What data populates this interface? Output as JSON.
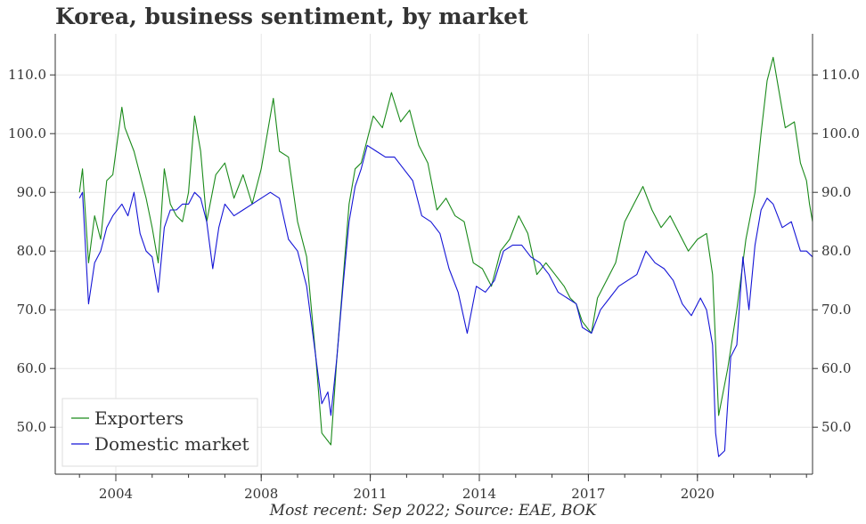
{
  "title": "Korea, business sentiment, by market",
  "footnote": "Most recent: Sep 2022; Source: EAE, BOK",
  "chart_data": {
    "type": "line",
    "title": "Korea, business sentiment, by market",
    "xlabel": "",
    "ylabel": "",
    "x_ticks": [
      "2004",
      "2008",
      "2011",
      "2014",
      "2017",
      "2020"
    ],
    "y_ticks": [
      "50.0",
      "60.0",
      "70.0",
      "80.0",
      "90.0",
      "100.0",
      "110.0"
    ],
    "xlim": [
      "2002-05",
      "2023-03"
    ],
    "ylim": [
      42,
      117
    ],
    "grid": true,
    "right_axis": true,
    "legend_position": "bottom-left",
    "series": [
      {
        "name": "Exporters",
        "color": "#1a8a1a",
        "points": [
          [
            "2003-01",
            90
          ],
          [
            "2003-02",
            94
          ],
          [
            "2003-04",
            78
          ],
          [
            "2003-06",
            86
          ],
          [
            "2003-08",
            82
          ],
          [
            "2003-10",
            92
          ],
          [
            "2003-12",
            93
          ],
          [
            "2004-03",
            104.5
          ],
          [
            "2004-04",
            101
          ],
          [
            "2004-07",
            97
          ],
          [
            "2004-09",
            93
          ],
          [
            "2004-11",
            89
          ],
          [
            "2005-01",
            84
          ],
          [
            "2005-03",
            78
          ],
          [
            "2005-05",
            94
          ],
          [
            "2005-07",
            88
          ],
          [
            "2005-09",
            86
          ],
          [
            "2005-11",
            85
          ],
          [
            "2006-01",
            90
          ],
          [
            "2006-03",
            103
          ],
          [
            "2006-05",
            97
          ],
          [
            "2006-07",
            85
          ],
          [
            "2006-10",
            93
          ],
          [
            "2007-01",
            95
          ],
          [
            "2007-04",
            89
          ],
          [
            "2007-07",
            93
          ],
          [
            "2007-10",
            88
          ],
          [
            "2008-01",
            94
          ],
          [
            "2008-05",
            106
          ],
          [
            "2008-07",
            97
          ],
          [
            "2008-10",
            96
          ],
          [
            "2009-01",
            85
          ],
          [
            "2009-04",
            79
          ],
          [
            "2009-07",
            62
          ],
          [
            "2009-09",
            49
          ],
          [
            "2009-12",
            47
          ],
          [
            "2010-02",
            62
          ],
          [
            "2010-04",
            75
          ],
          [
            "2010-06",
            88
          ],
          [
            "2010-08",
            94
          ],
          [
            "2010-10",
            95
          ],
          [
            "2010-12",
            99
          ],
          [
            "2011-02",
            103
          ],
          [
            "2011-05",
            101
          ],
          [
            "2011-08",
            107
          ],
          [
            "2011-11",
            102
          ],
          [
            "2012-02",
            104
          ],
          [
            "2012-05",
            98
          ],
          [
            "2012-08",
            95
          ],
          [
            "2012-11",
            87
          ],
          [
            "2013-02",
            89
          ],
          [
            "2013-05",
            86
          ],
          [
            "2013-08",
            85
          ],
          [
            "2013-11",
            78
          ],
          [
            "2014-02",
            77
          ],
          [
            "2014-05",
            74
          ],
          [
            "2014-08",
            80
          ],
          [
            "2014-11",
            82
          ],
          [
            "2015-02",
            86
          ],
          [
            "2015-05",
            83
          ],
          [
            "2015-08",
            76
          ],
          [
            "2015-11",
            78
          ],
          [
            "2016-02",
            76
          ],
          [
            "2016-05",
            74
          ],
          [
            "2016-07",
            72
          ],
          [
            "2016-09",
            71
          ],
          [
            "2016-11",
            68
          ],
          [
            "2017-02",
            66
          ],
          [
            "2017-04",
            72
          ],
          [
            "2017-07",
            75
          ],
          [
            "2017-10",
            78
          ],
          [
            "2018-01",
            85
          ],
          [
            "2018-04",
            88
          ],
          [
            "2018-07",
            91
          ],
          [
            "2018-10",
            87
          ],
          [
            "2019-01",
            84
          ],
          [
            "2019-04",
            86
          ],
          [
            "2019-07",
            83
          ],
          [
            "2019-10",
            80
          ],
          [
            "2020-01",
            82
          ],
          [
            "2020-04",
            83
          ],
          [
            "2020-06",
            76
          ],
          [
            "2020-08",
            52
          ],
          [
            "2020-11",
            60
          ],
          [
            "2021-02",
            70
          ],
          [
            "2021-05",
            82
          ],
          [
            "2021-08",
            90
          ],
          [
            "2021-10",
            100
          ],
          [
            "2021-12",
            109
          ],
          [
            "2022-02",
            113
          ],
          [
            "2022-04",
            107
          ],
          [
            "2022-06",
            101
          ],
          [
            "2022-09",
            102
          ],
          [
            "2022-11",
            95
          ],
          [
            "2023-01",
            92
          ],
          [
            "2023-02",
            88
          ],
          [
            "2023-03",
            85
          ]
        ]
      },
      {
        "name": "Domestic market",
        "color": "#1515d6",
        "points": [
          [
            "2003-01",
            89
          ],
          [
            "2003-02",
            90
          ],
          [
            "2003-04",
            71
          ],
          [
            "2003-06",
            78
          ],
          [
            "2003-08",
            80
          ],
          [
            "2003-10",
            84
          ],
          [
            "2003-12",
            86
          ],
          [
            "2004-03",
            88
          ],
          [
            "2004-05",
            86
          ],
          [
            "2004-07",
            90
          ],
          [
            "2004-09",
            83
          ],
          [
            "2004-11",
            80
          ],
          [
            "2005-01",
            79
          ],
          [
            "2005-03",
            73
          ],
          [
            "2005-05",
            84
          ],
          [
            "2005-07",
            87
          ],
          [
            "2005-09",
            87
          ],
          [
            "2005-11",
            88
          ],
          [
            "2006-01",
            88
          ],
          [
            "2006-03",
            90
          ],
          [
            "2006-05",
            89
          ],
          [
            "2006-07",
            85
          ],
          [
            "2006-09",
            77
          ],
          [
            "2006-11",
            84
          ],
          [
            "2007-01",
            88
          ],
          [
            "2007-04",
            86
          ],
          [
            "2007-07",
            87
          ],
          [
            "2007-10",
            88
          ],
          [
            "2008-01",
            89
          ],
          [
            "2008-04",
            90
          ],
          [
            "2008-07",
            89
          ],
          [
            "2008-10",
            82
          ],
          [
            "2009-01",
            80
          ],
          [
            "2009-04",
            74
          ],
          [
            "2009-07",
            62
          ],
          [
            "2009-09",
            54
          ],
          [
            "2009-11",
            56
          ],
          [
            "2009-12",
            52
          ],
          [
            "2010-02",
            62
          ],
          [
            "2010-04",
            74
          ],
          [
            "2010-06",
            85
          ],
          [
            "2010-08",
            91
          ],
          [
            "2010-10",
            94
          ],
          [
            "2010-12",
            98
          ],
          [
            "2011-03",
            97
          ],
          [
            "2011-06",
            96
          ],
          [
            "2011-09",
            96
          ],
          [
            "2011-12",
            94
          ],
          [
            "2012-03",
            92
          ],
          [
            "2012-06",
            86
          ],
          [
            "2012-09",
            85
          ],
          [
            "2012-12",
            83
          ],
          [
            "2013-03",
            77
          ],
          [
            "2013-06",
            73
          ],
          [
            "2013-09",
            66
          ],
          [
            "2013-12",
            74
          ],
          [
            "2014-03",
            73
          ],
          [
            "2014-06",
            75
          ],
          [
            "2014-09",
            80
          ],
          [
            "2014-12",
            81
          ],
          [
            "2015-03",
            81
          ],
          [
            "2015-06",
            79
          ],
          [
            "2015-09",
            78
          ],
          [
            "2015-12",
            76
          ],
          [
            "2016-03",
            73
          ],
          [
            "2016-06",
            72
          ],
          [
            "2016-09",
            71
          ],
          [
            "2016-11",
            67
          ],
          [
            "2017-02",
            66
          ],
          [
            "2017-05",
            70
          ],
          [
            "2017-08",
            72
          ],
          [
            "2017-11",
            74
          ],
          [
            "2018-02",
            75
          ],
          [
            "2018-05",
            76
          ],
          [
            "2018-08",
            80
          ],
          [
            "2018-11",
            78
          ],
          [
            "2019-02",
            77
          ],
          [
            "2019-05",
            75
          ],
          [
            "2019-08",
            71
          ],
          [
            "2019-11",
            69
          ],
          [
            "2020-02",
            72
          ],
          [
            "2020-04",
            70
          ],
          [
            "2020-06",
            64
          ],
          [
            "2020-07",
            49
          ],
          [
            "2020-08",
            45
          ],
          [
            "2020-10",
            46
          ],
          [
            "2020-12",
            62
          ],
          [
            "2021-02",
            64
          ],
          [
            "2021-04",
            79
          ],
          [
            "2021-06",
            70
          ],
          [
            "2021-08",
            81
          ],
          [
            "2021-10",
            87
          ],
          [
            "2021-12",
            89
          ],
          [
            "2022-02",
            88
          ],
          [
            "2022-05",
            84
          ],
          [
            "2022-08",
            85
          ],
          [
            "2022-11",
            80
          ],
          [
            "2023-01",
            80
          ],
          [
            "2023-03",
            79
          ]
        ]
      }
    ]
  }
}
